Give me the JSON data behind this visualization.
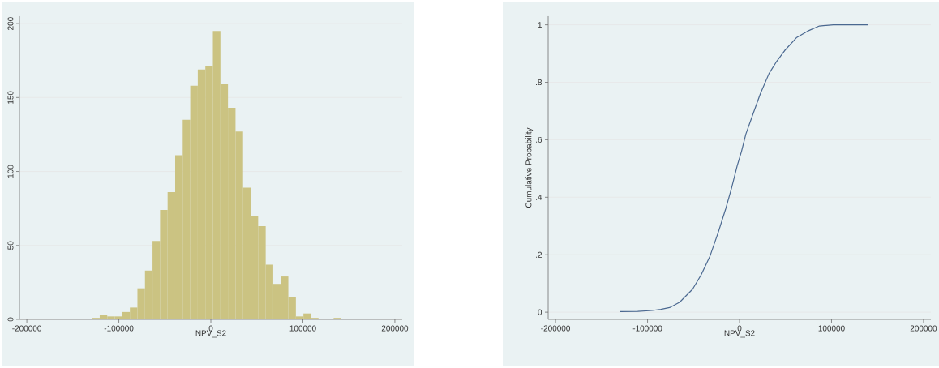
{
  "chart_data": [
    {
      "type": "histogram",
      "xlabel": "NPV_S2",
      "color": "#cbc382",
      "bins": [
        -129000,
        -120800,
        -112600,
        -104400,
        -96200,
        -88000,
        -79800,
        -71600,
        -63400,
        -55200,
        -47000,
        -38800,
        -30600,
        -22400,
        -14200,
        -6000,
        2200,
        10400,
        18600,
        26800,
        35000,
        43200,
        51400,
        59600,
        67800,
        76000,
        84200,
        92400,
        100600,
        108800,
        117000,
        125200,
        133400,
        141600
      ],
      "values": [
        1,
        3,
        2,
        2,
        5,
        8,
        21,
        33,
        53,
        74,
        86,
        111,
        135,
        158,
        169,
        171,
        195,
        159,
        143,
        127,
        89,
        70,
        63,
        37,
        24,
        29,
        15,
        2,
        4,
        1,
        0,
        0,
        1
      ],
      "xlim": [
        -208000,
        208000
      ],
      "ylim": [
        0,
        205
      ],
      "xticks": [
        -200000,
        -100000,
        0,
        100000,
        200000
      ],
      "yticks": [
        0,
        50,
        100,
        150,
        200
      ],
      "grid": "y"
    },
    {
      "type": "line",
      "xlabel": "NPV_S2",
      "ylabel": "Cumulative Probability",
      "color": "#4a6890",
      "marker": "none",
      "x": [
        -129800,
        -110700,
        -95000,
        -85600,
        -76000,
        -65000,
        -51000,
        -41700,
        -32000,
        -22900,
        -15000,
        -8800,
        -2500,
        2200,
        6900,
        14700,
        22600,
        32000,
        39800,
        49000,
        61800,
        74000,
        86800,
        102000,
        140000
      ],
      "values": [
        0.002,
        0.003,
        0.006,
        0.01,
        0.016,
        0.035,
        0.08,
        0.13,
        0.196,
        0.28,
        0.36,
        0.43,
        0.51,
        0.56,
        0.62,
        0.69,
        0.76,
        0.83,
        0.87,
        0.91,
        0.955,
        0.978,
        0.996,
        1.0,
        1.0
      ],
      "xlim": [
        -208000,
        208000
      ],
      "ylim": [
        -0.025,
        1.03
      ],
      "xticks": [
        -200000,
        -100000,
        0,
        100000,
        200000
      ],
      "yticks": [
        0,
        {
          "value": 0.2,
          "label": ".2"
        },
        {
          "value": 0.4,
          "label": ".4"
        },
        {
          "value": 0.6,
          "label": ".6"
        },
        {
          "value": 0.8,
          "label": ".8"
        },
        1
      ],
      "grid": "y"
    }
  ]
}
